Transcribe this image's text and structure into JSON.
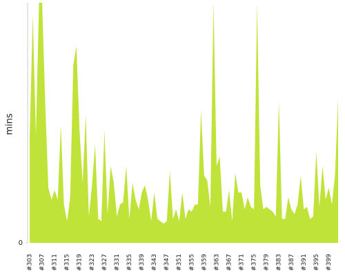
{
  "chart_data": {
    "type": "area",
    "y_label": "mins",
    "categories": [
      "#303",
      null,
      null,
      null,
      "#307",
      null,
      null,
      null,
      "#311",
      null,
      null,
      null,
      "#315",
      null,
      null,
      null,
      "#319",
      null,
      null,
      null,
      "#323",
      null,
      null,
      null,
      "#327",
      null,
      null,
      null,
      "#331",
      null,
      null,
      null,
      "#335",
      null,
      null,
      null,
      "#339",
      null,
      null,
      null,
      "#343",
      null,
      null,
      null,
      "#347",
      null,
      null,
      null,
      "#351",
      null,
      null,
      null,
      "#355",
      null,
      null,
      null,
      "#359",
      null,
      null,
      null,
      "#363",
      null,
      null,
      null,
      "#367",
      null,
      null,
      null,
      "#371",
      null,
      null,
      null,
      "#375",
      null,
      null,
      null,
      "#379",
      null,
      null,
      null,
      "#383",
      null,
      null,
      null,
      "#387",
      null,
      null,
      null,
      "#391",
      null,
      null,
      null,
      "#395",
      null,
      null,
      null,
      "#399",
      null,
      null,
      null
    ],
    "series": [
      {
        "color": "#c0e33a",
        "values": [
          44,
          95,
          45,
          100,
          100,
          58,
          23,
          18,
          22,
          18,
          49,
          16,
          9,
          19,
          74,
          82,
          47,
          25,
          53,
          11,
          24,
          41,
          10,
          9,
          47,
          12,
          32,
          25,
          11,
          16,
          17,
          32,
          10,
          25,
          18,
          14,
          21,
          24,
          18,
          9,
          21,
          10,
          9,
          8,
          9,
          30,
          10,
          14,
          9,
          21,
          10,
          14,
          13,
          16,
          16,
          55,
          28,
          26,
          15,
          100,
          32,
          36,
          13,
          13,
          22,
          9,
          29,
          21,
          21,
          14,
          19,
          15,
          14,
          100,
          24,
          14,
          15,
          14,
          13,
          11,
          59,
          10,
          10,
          19,
          14,
          12,
          16,
          28,
          14,
          15,
          10,
          11,
          38,
          15,
          32,
          18,
          23,
          16,
          28,
          60
        ]
      }
    ],
    "ylim": [
      0,
      100
    ],
    "yticks": [
      0
    ]
  }
}
